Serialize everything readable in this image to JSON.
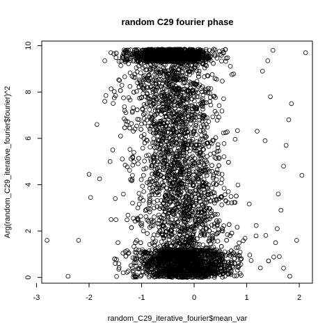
{
  "chart_data": {
    "type": "scatter",
    "title": "random C29 fourier phase",
    "xlabel": "random_C29_iterative_fourier$mean_var",
    "ylabel": "Arg(random_C29_iterative_fourier$fourier)^2",
    "xlim": [
      -2.9,
      2.25
    ],
    "ylim": [
      -0.25,
      10.2
    ],
    "x_ticks": [
      -3,
      -2,
      -1,
      0,
      1,
      2
    ],
    "x_tick_labels": [
      "-3",
      "-2",
      "-1",
      "0",
      "1",
      "2"
    ],
    "y_ticks": [
      0,
      2,
      4,
      6,
      8,
      10
    ],
    "y_tick_labels": [
      "0",
      "2",
      "4",
      "6",
      "8",
      "10"
    ],
    "grid": false,
    "point_shape": "open-circle",
    "points": [
      [
        -2.8,
        1.6
      ],
      [
        -2.4,
        0.05
      ],
      [
        -2.2,
        1.6
      ],
      [
        -2.0,
        4.45
      ],
      [
        -1.97,
        3.45
      ],
      [
        -1.85,
        6.6
      ],
      [
        -1.8,
        4.25
      ],
      [
        -1.7,
        7.6
      ],
      [
        -1.7,
        9.35
      ],
      [
        -1.68,
        7.85
      ],
      [
        -1.6,
        5.0
      ],
      [
        -1.55,
        5.5
      ],
      [
        -1.58,
        2.5
      ],
      [
        -1.52,
        7.75
      ],
      [
        -1.5,
        3.4
      ],
      [
        -1.45,
        1.5
      ],
      [
        -1.42,
        8.5
      ],
      [
        -1.4,
        6.1
      ],
      [
        -1.35,
        0.2
      ],
      [
        -1.3,
        9.7
      ],
      [
        -1.5,
        0.6
      ],
      [
        2.12,
        9.7
      ],
      [
        2.05,
        4.4
      ],
      [
        1.85,
        7.5
      ],
      [
        1.8,
        6.8
      ],
      [
        1.75,
        5.7
      ],
      [
        1.7,
        4.8
      ],
      [
        1.65,
        2.9
      ],
      [
        1.6,
        3.6
      ],
      [
        1.55,
        1.5
      ],
      [
        1.5,
        9.8
      ],
      [
        1.45,
        7.8
      ],
      [
        1.4,
        9.35
      ],
      [
        1.35,
        5.9
      ],
      [
        1.3,
        8.9
      ],
      [
        1.82,
        0.05
      ],
      [
        1.7,
        0.4
      ],
      [
        1.95,
        1.6
      ],
      [
        1.62,
        0.9
      ],
      [
        1.58,
        2.1
      ]
    ],
    "cloud": {
      "n": 5000,
      "x_mean_low_y": -0.15,
      "x_mean_high_y": -0.45,
      "x_sd": 0.45,
      "note": "dense central band"
    }
  }
}
